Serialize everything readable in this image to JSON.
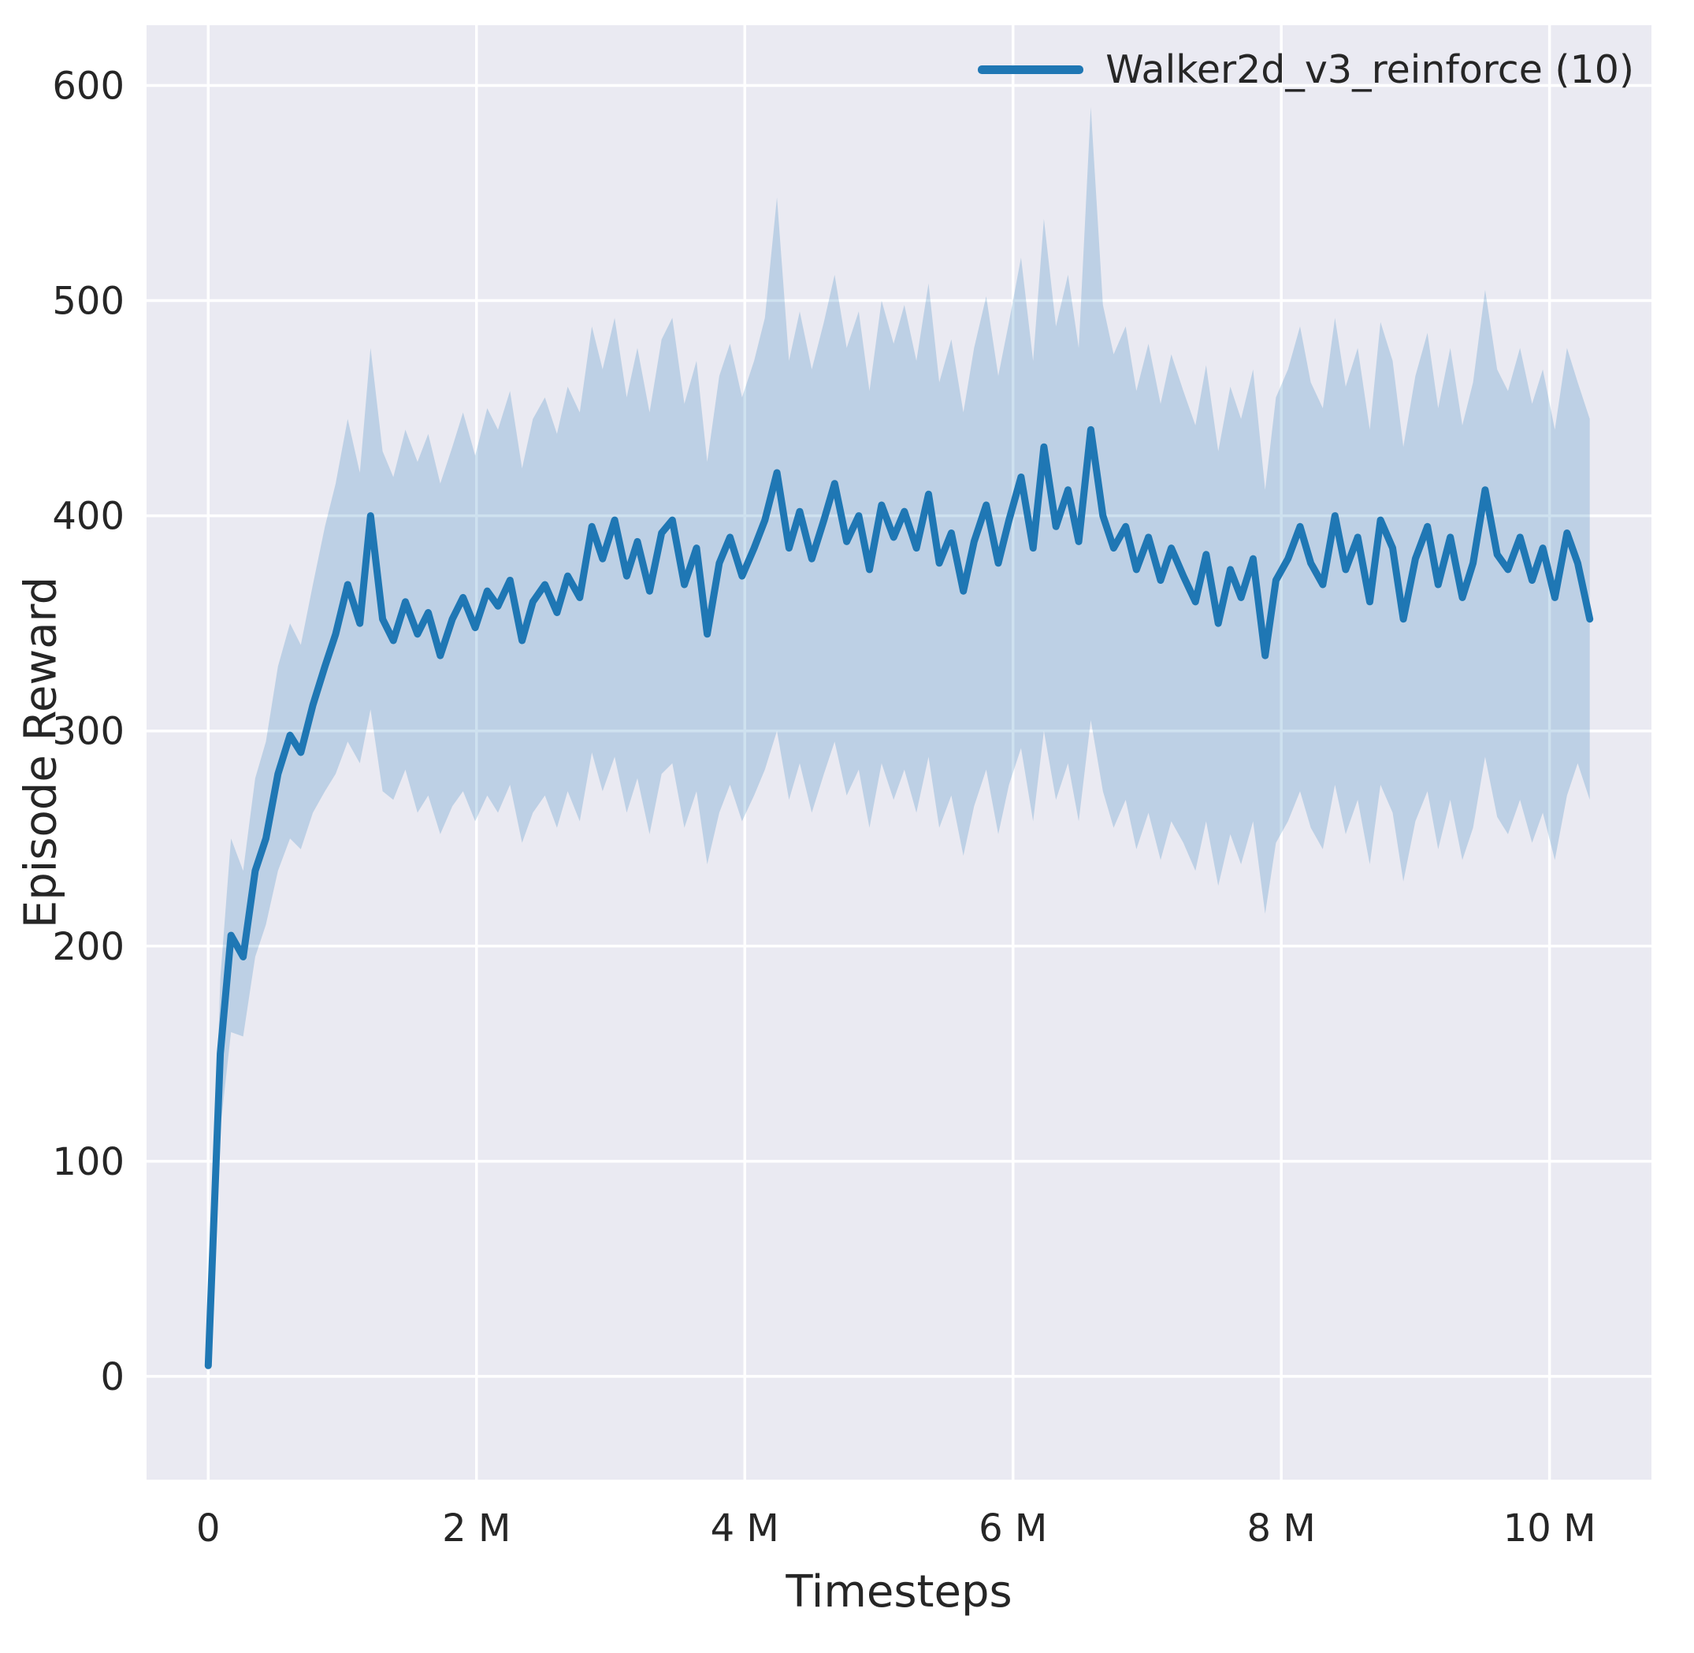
{
  "figure": {
    "background": "#ffffff",
    "plot_background": "#eaeaf2",
    "grid_color": "#ffffff",
    "text_color": "#262626"
  },
  "axes": {
    "xlabel": "Timesteps",
    "ylabel": "Episode Reward"
  },
  "legend": {
    "label": "Walker2d_v3_reinforce (10)",
    "line_color": "#1f77b4"
  },
  "chart_data": {
    "type": "line",
    "title": "",
    "xlabel": "Timesteps",
    "ylabel": "Episode Reward",
    "legend_entries": [
      "Walker2d_v3_reinforce (10)"
    ],
    "legend_position": "upper right",
    "grid": true,
    "x_units": "millions of timesteps",
    "xlim": [
      -0.46,
      10.76
    ],
    "ylim": [
      -48,
      628
    ],
    "xticks": [
      0,
      2,
      4,
      6,
      8,
      10
    ],
    "xtick_labels": [
      "0",
      "2 M",
      "4 M",
      "6 M",
      "8 M",
      "10 M"
    ],
    "yticks": [
      0,
      100,
      200,
      300,
      400,
      500,
      600
    ],
    "ytick_labels": [
      "0",
      "100",
      "200",
      "300",
      "400",
      "500",
      "600"
    ],
    "series": [
      {
        "name": "Walker2d_v3_reinforce (10)",
        "color": "#1f77b4",
        "band_color": "#1f77b4",
        "band_opacity": 0.22,
        "x": [
          0,
          0.09,
          0.17,
          0.26,
          0.35,
          0.43,
          0.52,
          0.61,
          0.69,
          0.78,
          0.87,
          0.95,
          1.04,
          1.13,
          1.21,
          1.3,
          1.38,
          1.47,
          1.56,
          1.64,
          1.73,
          1.82,
          1.9,
          1.99,
          2.08,
          2.16,
          2.25,
          2.34,
          2.42,
          2.51,
          2.6,
          2.68,
          2.77,
          2.86,
          2.94,
          3.03,
          3.12,
          3.2,
          3.29,
          3.38,
          3.46,
          3.55,
          3.64,
          3.72,
          3.81,
          3.89,
          3.98,
          4.07,
          4.15,
          4.24,
          4.33,
          4.41,
          4.5,
          4.59,
          4.67,
          4.76,
          4.85,
          4.93,
          5.02,
          5.11,
          5.19,
          5.28,
          5.37,
          5.45,
          5.54,
          5.63,
          5.71,
          5.8,
          5.89,
          5.97,
          6.06,
          6.15,
          6.23,
          6.32,
          6.41,
          6.49,
          6.58,
          6.67,
          6.75,
          6.84,
          6.92,
          7.01,
          7.1,
          7.18,
          7.27,
          7.36,
          7.44,
          7.53,
          7.62,
          7.7,
          7.79,
          7.88,
          7.96,
          8.05,
          8.14,
          8.22,
          8.31,
          8.4,
          8.48,
          8.57,
          8.66,
          8.74,
          8.83,
          8.91,
          9.0,
          9.09,
          9.17,
          9.26,
          9.35,
          9.43,
          9.52,
          9.61,
          9.69,
          9.78,
          9.87,
          9.95,
          10.04,
          10.13,
          10.21,
          10.3
        ],
        "mean": [
          5,
          150,
          205,
          195,
          235,
          250,
          280,
          298,
          290,
          312,
          330,
          345,
          368,
          350,
          400,
          352,
          342,
          360,
          345,
          355,
          335,
          352,
          362,
          348,
          365,
          358,
          370,
          342,
          360,
          368,
          355,
          372,
          362,
          395,
          380,
          398,
          372,
          388,
          365,
          392,
          398,
          368,
          385,
          345,
          378,
          390,
          372,
          385,
          398,
          420,
          385,
          402,
          380,
          398,
          415,
          388,
          400,
          375,
          405,
          390,
          402,
          385,
          410,
          378,
          392,
          365,
          388,
          405,
          378,
          398,
          418,
          385,
          432,
          395,
          412,
          388,
          440,
          400,
          385,
          395,
          375,
          390,
          370,
          385,
          372,
          360,
          382,
          350,
          375,
          362,
          380,
          335,
          370,
          380,
          395,
          378,
          368,
          400,
          375,
          390,
          360,
          398,
          385,
          352,
          380,
          395,
          368,
          390,
          362,
          378,
          412,
          382,
          375,
          390,
          370,
          385,
          362,
          392,
          378,
          352
        ],
        "band_lower": [
          5,
          115,
          160,
          158,
          195,
          210,
          235,
          250,
          245,
          262,
          272,
          280,
          295,
          285,
          310,
          272,
          268,
          282,
          262,
          270,
          252,
          265,
          272,
          258,
          270,
          262,
          275,
          248,
          262,
          270,
          255,
          272,
          258,
          290,
          272,
          288,
          262,
          278,
          252,
          280,
          285,
          255,
          272,
          238,
          262,
          275,
          258,
          270,
          282,
          300,
          268,
          285,
          262,
          280,
          295,
          270,
          282,
          255,
          285,
          268,
          282,
          262,
          288,
          255,
          270,
          242,
          265,
          282,
          252,
          275,
          292,
          258,
          300,
          268,
          285,
          258,
          305,
          272,
          255,
          268,
          245,
          262,
          240,
          258,
          248,
          235,
          258,
          228,
          252,
          238,
          258,
          215,
          248,
          258,
          272,
          255,
          245,
          275,
          252,
          268,
          238,
          275,
          262,
          230,
          258,
          272,
          245,
          268,
          240,
          255,
          288,
          260,
          252,
          268,
          248,
          262,
          240,
          270,
          285,
          268
        ],
        "band_upper": [
          5,
          185,
          250,
          235,
          278,
          295,
          330,
          350,
          340,
          368,
          395,
          415,
          445,
          420,
          478,
          430,
          418,
          440,
          425,
          438,
          415,
          432,
          448,
          428,
          450,
          440,
          458,
          422,
          445,
          455,
          438,
          460,
          448,
          488,
          468,
          492,
          455,
          478,
          448,
          482,
          492,
          452,
          472,
          425,
          465,
          480,
          455,
          472,
          492,
          548,
          472,
          495,
          468,
          490,
          512,
          478,
          495,
          458,
          500,
          480,
          498,
          472,
          508,
          462,
          482,
          448,
          478,
          502,
          465,
          490,
          520,
          472,
          538,
          488,
          512,
          478,
          590,
          498,
          475,
          488,
          458,
          480,
          452,
          475,
          458,
          442,
          470,
          430,
          460,
          445,
          468,
          412,
          455,
          468,
          488,
          462,
          450,
          492,
          460,
          478,
          440,
          490,
          472,
          432,
          465,
          485,
          450,
          478,
          442,
          462,
          505,
          468,
          458,
          478,
          452,
          468,
          440,
          478,
          462,
          445
        ]
      }
    ]
  }
}
